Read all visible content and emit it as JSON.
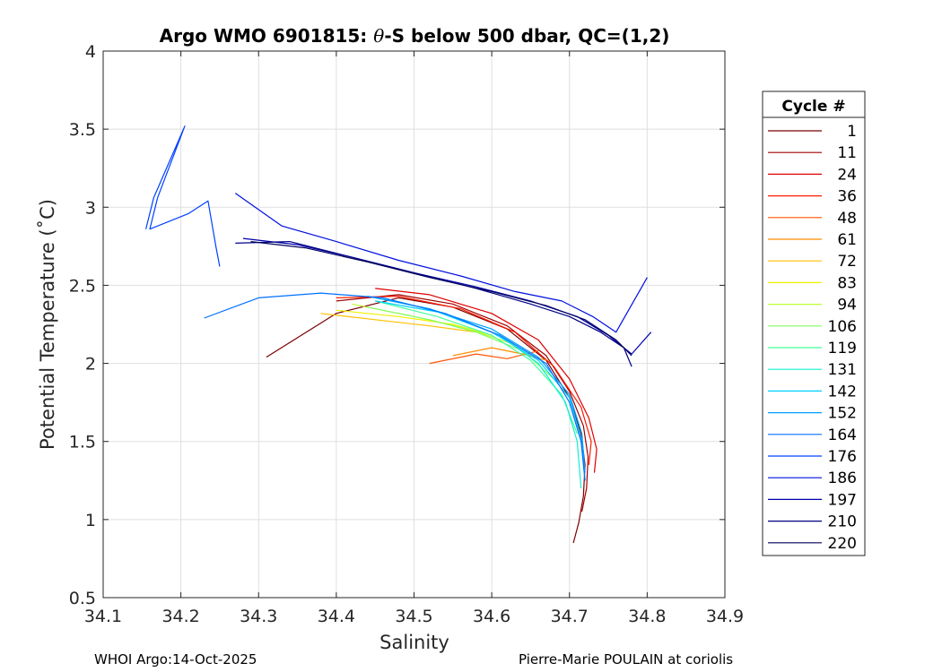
{
  "chart_data": {
    "type": "line",
    "title_prefix": "Argo WMO 6901815: ",
    "title_symbol": "θ",
    "title_suffix": "-S below 500 dbar,  QC=(1,2)",
    "xlabel": "Salinity",
    "ylabel": "Potential Temperature (˚C)",
    "xlim": [
      34.1,
      34.9
    ],
    "ylim": [
      0.5,
      4
    ],
    "xticks": [
      "34.1",
      "34.2",
      "34.3",
      "34.4",
      "34.5",
      "34.6",
      "34.7",
      "34.8",
      "34.9"
    ],
    "yticks": [
      "0.5",
      "1",
      "1.5",
      "2",
      "2.5",
      "3",
      "3.5",
      "4"
    ],
    "grid": true,
    "legend_title": "Cycle #",
    "legend": [
      {
        "label": "1",
        "color": "#7a0000"
      },
      {
        "label": "11",
        "color": "#a00000"
      },
      {
        "label": "24",
        "color": "#e00000"
      },
      {
        "label": "36",
        "color": "#ff1a00"
      },
      {
        "label": "48",
        "color": "#ff5500"
      },
      {
        "label": "61",
        "color": "#ff8c00"
      },
      {
        "label": "72",
        "color": "#ffc000"
      },
      {
        "label": "83",
        "color": "#f0f000"
      },
      {
        "label": "94",
        "color": "#c0ff30"
      },
      {
        "label": "106",
        "color": "#80ff60"
      },
      {
        "label": "119",
        "color": "#40ff9a"
      },
      {
        "label": "131",
        "color": "#10f0d0"
      },
      {
        "label": "142",
        "color": "#00d0ff"
      },
      {
        "label": "152",
        "color": "#00a0ff"
      },
      {
        "label": "164",
        "color": "#0070ff"
      },
      {
        "label": "176",
        "color": "#0040ff"
      },
      {
        "label": "186",
        "color": "#0010e0"
      },
      {
        "label": "197",
        "color": "#0000b0"
      },
      {
        "label": "210",
        "color": "#000085"
      },
      {
        "label": "220",
        "color": "#00005a"
      }
    ],
    "series": [
      {
        "name": "1",
        "color": "#7a0000",
        "x": [
          34.31,
          34.4,
          34.48,
          34.55,
          34.62,
          34.67,
          34.7,
          34.715,
          34.72,
          34.718,
          34.712,
          34.705
        ],
        "y": [
          2.04,
          2.32,
          2.42,
          2.36,
          2.22,
          2.02,
          1.78,
          1.55,
          1.35,
          1.15,
          0.98,
          0.85
        ]
      },
      {
        "name": "11",
        "color": "#a00000",
        "x": [
          34.4,
          34.48,
          34.55,
          34.62,
          34.67,
          34.7,
          34.718,
          34.724,
          34.722,
          34.716
        ],
        "y": [
          2.4,
          2.44,
          2.38,
          2.24,
          2.05,
          1.82,
          1.6,
          1.4,
          1.2,
          1.05
        ]
      },
      {
        "name": "24",
        "color": "#e00000",
        "x": [
          34.45,
          34.52,
          34.6,
          34.66,
          34.7,
          34.725,
          34.735,
          34.732
        ],
        "y": [
          2.48,
          2.44,
          2.32,
          2.15,
          1.9,
          1.65,
          1.45,
          1.3
        ]
      },
      {
        "name": "36",
        "color": "#ff1a00",
        "x": [
          34.4,
          34.48,
          34.56,
          34.63,
          34.68,
          34.715,
          34.728,
          34.725
        ],
        "y": [
          2.42,
          2.43,
          2.35,
          2.2,
          1.98,
          1.72,
          1.5,
          1.35
        ]
      },
      {
        "name": "48",
        "color": "#ff5500",
        "x": [
          34.52,
          34.58,
          34.62,
          34.66
        ],
        "y": [
          2.0,
          2.06,
          2.03,
          2.08
        ]
      },
      {
        "name": "61",
        "color": "#ff8c00",
        "x": [
          34.55,
          34.6,
          34.64,
          34.67
        ],
        "y": [
          2.05,
          2.1,
          2.06,
          2.02
        ]
      },
      {
        "name": "72",
        "color": "#ffc000",
        "x": [
          34.38,
          34.45,
          34.52,
          34.58
        ],
        "y": [
          2.32,
          2.28,
          2.24,
          2.2
        ]
      },
      {
        "name": "83",
        "color": "#f0f000",
        "x": [
          34.4,
          34.48,
          34.55,
          34.6
        ],
        "y": [
          2.34,
          2.3,
          2.25,
          2.18
        ]
      },
      {
        "name": "94",
        "color": "#c0ff30",
        "x": [
          34.42,
          34.5,
          34.57,
          34.63
        ],
        "y": [
          2.38,
          2.3,
          2.22,
          2.12
        ]
      },
      {
        "name": "106",
        "color": "#80ff60",
        "x": [
          34.44,
          34.52,
          34.58,
          34.64,
          34.68
        ],
        "y": [
          2.36,
          2.28,
          2.2,
          2.08,
          1.9
        ]
      },
      {
        "name": "119",
        "color": "#40ff9a",
        "x": [
          34.45,
          34.53,
          34.6,
          34.65,
          34.69,
          34.71
        ],
        "y": [
          2.4,
          2.3,
          2.18,
          2.02,
          1.8,
          1.55
        ]
      },
      {
        "name": "131",
        "color": "#10f0d0",
        "x": [
          34.46,
          34.54,
          34.61,
          34.66,
          34.695,
          34.71,
          34.715
        ],
        "y": [
          2.42,
          2.32,
          2.18,
          2.0,
          1.75,
          1.5,
          1.2
        ]
      },
      {
        "name": "142",
        "color": "#00d0ff",
        "x": [
          34.45,
          34.53,
          34.6,
          34.66,
          34.7,
          34.715,
          34.72
        ],
        "y": [
          2.4,
          2.33,
          2.2,
          2.02,
          1.78,
          1.52,
          1.25
        ]
      },
      {
        "name": "152",
        "color": "#00a0ff",
        "x": [
          34.44,
          34.52,
          34.6,
          34.66,
          34.7,
          34.716,
          34.72
        ],
        "y": [
          2.43,
          2.35,
          2.22,
          2.04,
          1.8,
          1.55,
          1.3
        ]
      },
      {
        "name": "164",
        "color": "#0070ff",
        "x": [
          34.23,
          34.3,
          34.38,
          34.46,
          34.54,
          34.61,
          34.67,
          34.7,
          34.715,
          34.72
        ],
        "y": [
          2.29,
          2.42,
          2.45,
          2.42,
          2.32,
          2.18,
          2.0,
          1.75,
          1.5,
          1.25
        ]
      },
      {
        "name": "176",
        "color": "#0040ff",
        "x": [
          34.155,
          34.165,
          34.205,
          34.17,
          34.16,
          34.21,
          34.235,
          34.245,
          34.25
        ],
        "y": [
          2.86,
          3.06,
          3.52,
          3.06,
          2.86,
          2.96,
          3.04,
          2.75,
          2.62
        ]
      },
      {
        "name": "186",
        "color": "#0010e0",
        "x": [
          34.27,
          34.33,
          34.4,
          34.48,
          34.56,
          34.63,
          34.69,
          34.73,
          34.76,
          34.8
        ],
        "y": [
          3.09,
          2.88,
          2.78,
          2.66,
          2.56,
          2.46,
          2.4,
          2.3,
          2.2,
          2.55
        ]
      },
      {
        "name": "197",
        "color": "#0000b0",
        "x": [
          34.28,
          34.35,
          34.42,
          34.5,
          34.58,
          34.65,
          34.71,
          34.75,
          34.78,
          34.805
        ],
        "y": [
          2.8,
          2.76,
          2.68,
          2.58,
          2.49,
          2.4,
          2.3,
          2.18,
          2.06,
          2.2
        ]
      },
      {
        "name": "210",
        "color": "#000085",
        "x": [
          34.27,
          34.34,
          34.42,
          34.5,
          34.58,
          34.65,
          34.7,
          34.74,
          34.77,
          34.78
        ],
        "y": [
          2.77,
          2.78,
          2.68,
          2.58,
          2.48,
          2.38,
          2.3,
          2.2,
          2.1,
          1.98
        ]
      },
      {
        "name": "220",
        "color": "#00005a",
        "x": [
          34.29,
          34.36,
          34.44,
          34.52,
          34.6,
          34.67,
          34.72,
          34.76,
          34.78
        ],
        "y": [
          2.78,
          2.74,
          2.65,
          2.55,
          2.46,
          2.37,
          2.28,
          2.15,
          2.05
        ]
      }
    ]
  },
  "footer": {
    "left": "WHOI Argo:14-Oct-2025",
    "right": "Pierre-Marie POULAIN at coriolis"
  }
}
